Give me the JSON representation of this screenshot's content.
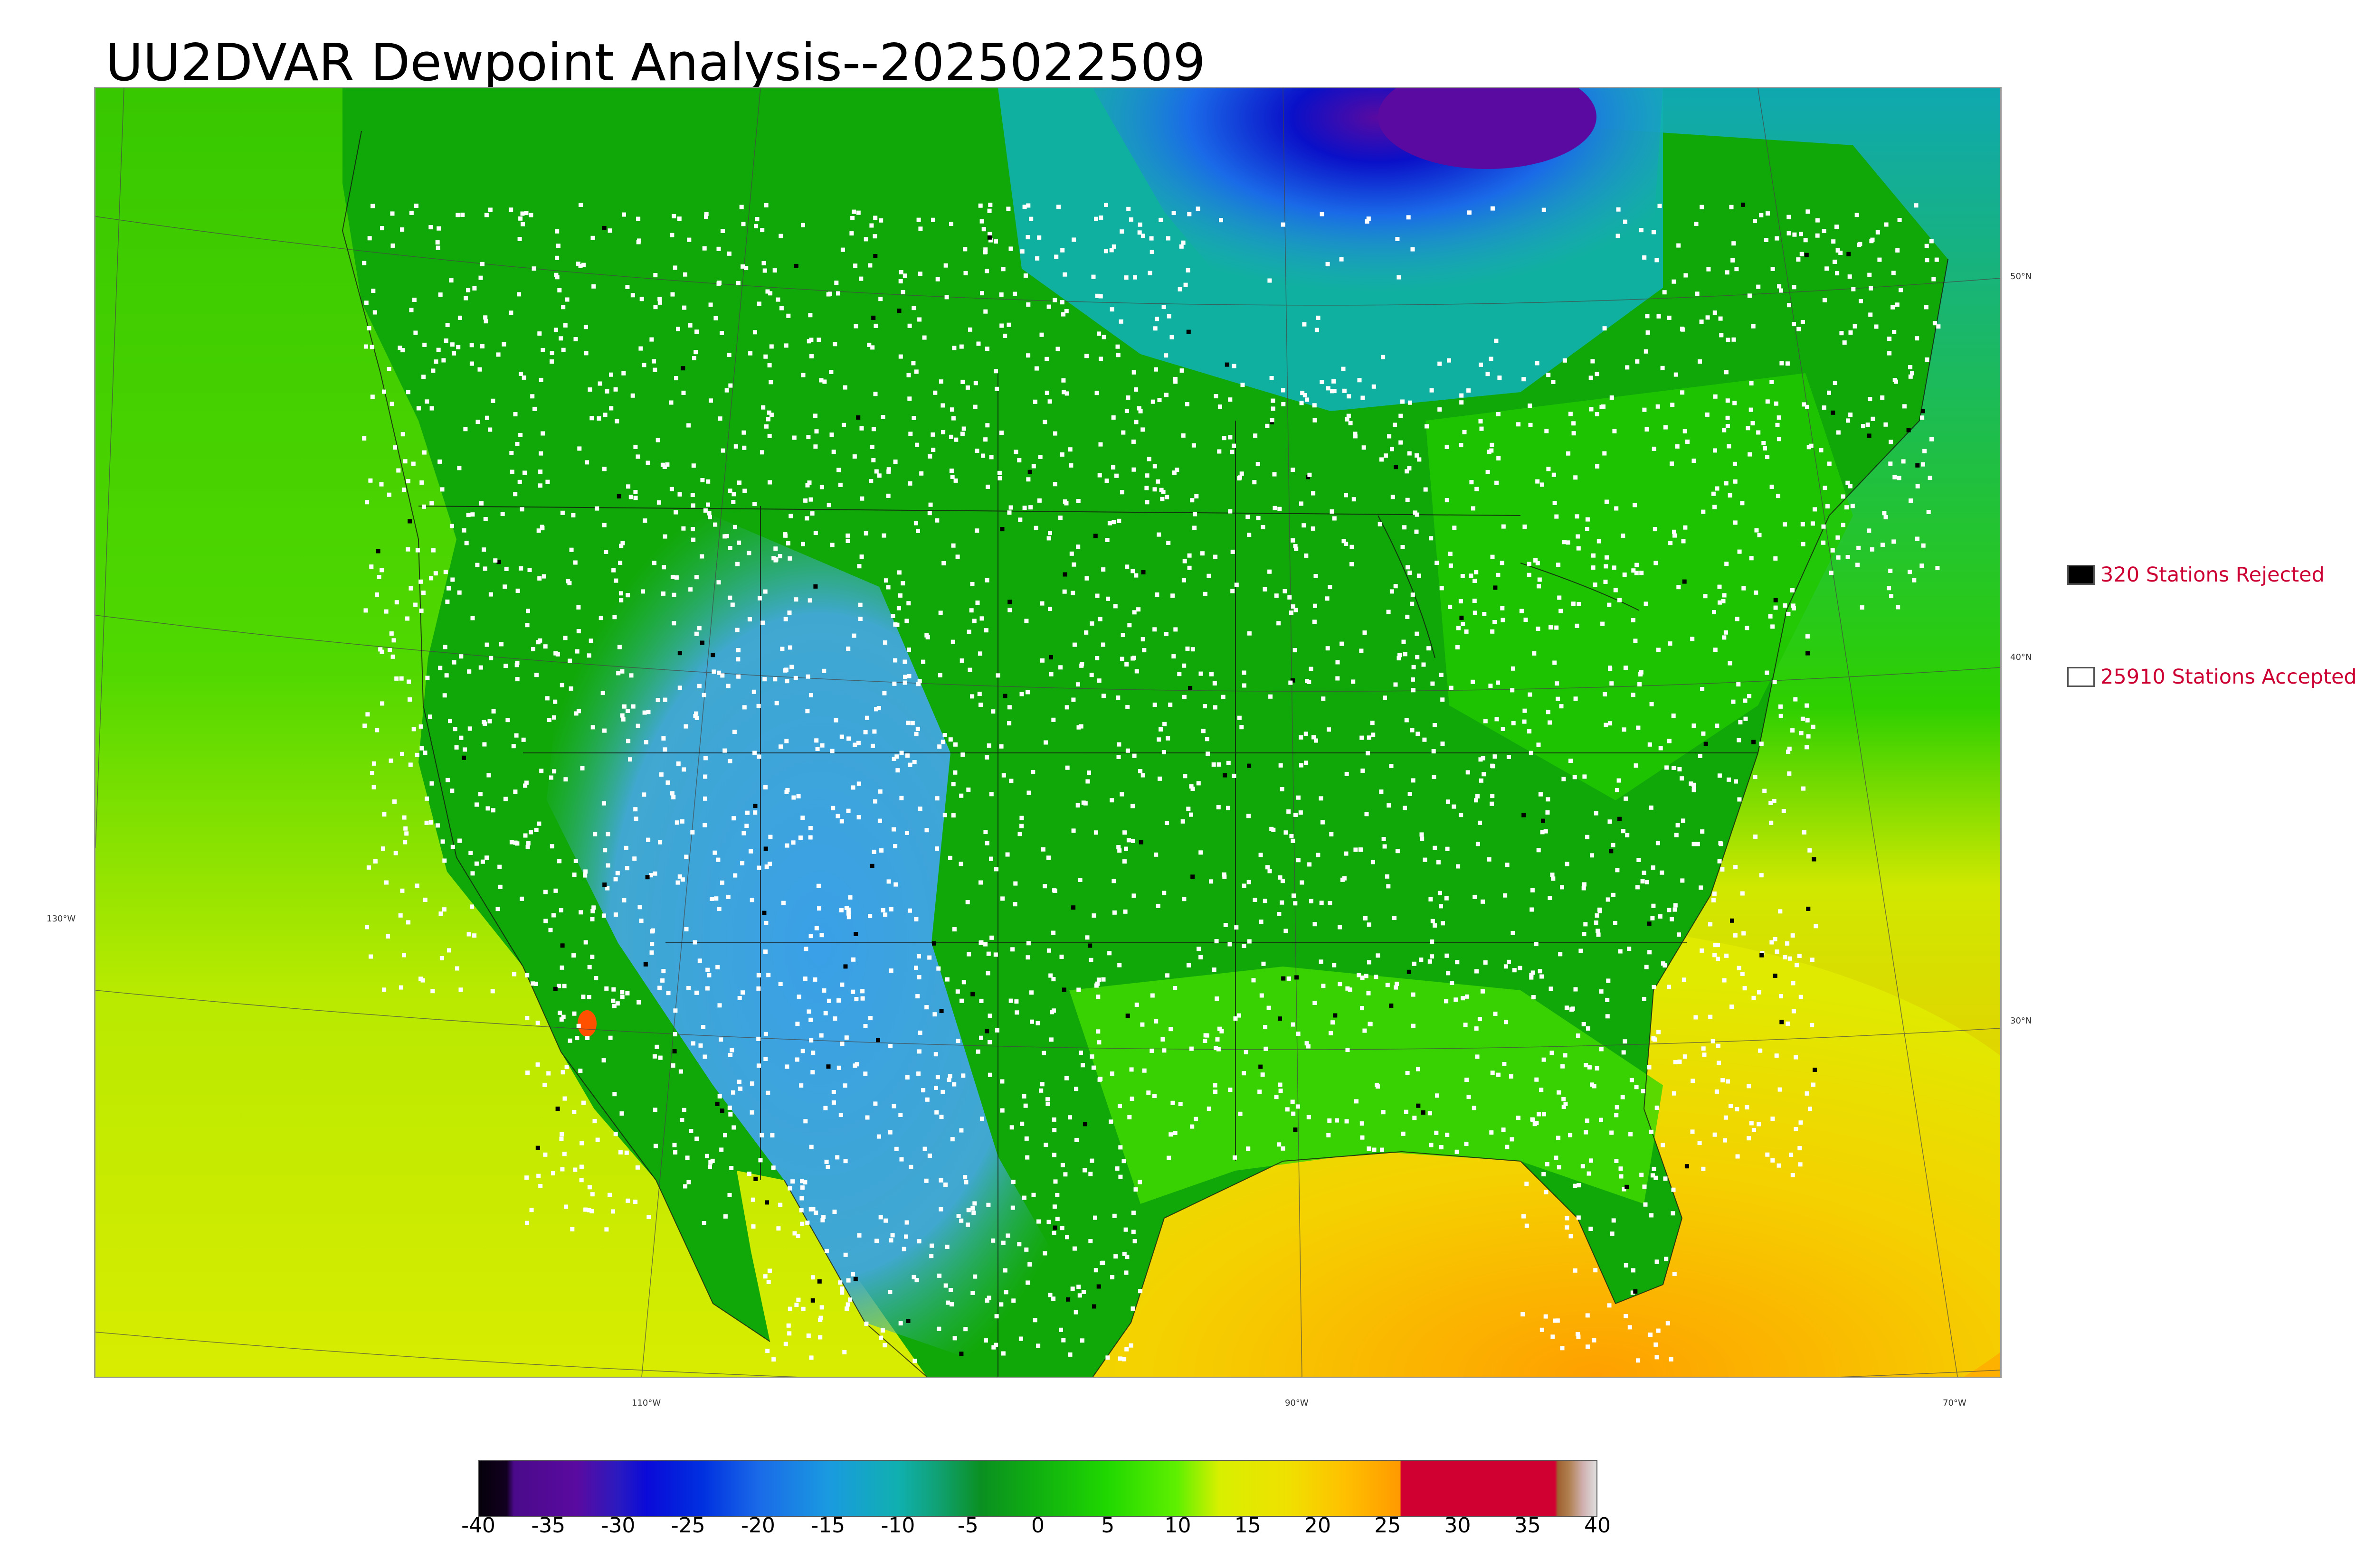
{
  "title": "UU2DVAR Dewpoint Analysis--2025022509",
  "map": {
    "lat_labels": [
      "50°N",
      "40°N",
      "30°N"
    ],
    "lon_labels": [
      "130°W",
      "110°W",
      "90°W",
      "70°W"
    ],
    "colors": {
      "pacific": "#44d100",
      "atlantic_north": "#22c050",
      "atlantic_south": "#f0d800",
      "gulf": "#e8e400",
      "west_dry": "#3aa6e0",
      "texas_dry": "#2f8fe0",
      "plains": "#0ea000",
      "east": "#1ed400",
      "southeast": "#6ee800",
      "canada_cold": "#0a18d8",
      "canada_coldest": "#5a0aa0",
      "canada_mid": "#2c8fd8",
      "station_accepted": "#ffffff",
      "station_rejected": "#000000"
    }
  },
  "legend": {
    "rejected": {
      "label": "320 Stations Rejected",
      "swatch_color": "#000000"
    },
    "accepted": {
      "label": "25910 Stations Accepted",
      "swatch_color": "#ffffff"
    }
  },
  "colorbar": {
    "ticks": [
      "-40",
      "-35",
      "-30",
      "-25",
      "-20",
      "-15",
      "-10",
      "-5",
      "0",
      "5",
      "10",
      "15",
      "20",
      "25",
      "30",
      "35",
      "40"
    ],
    "min": -40,
    "max": 40,
    "stops": [
      [
        -40,
        "#05000a"
      ],
      [
        -38,
        "#120020"
      ],
      [
        -37.5,
        "#4a0a8a"
      ],
      [
        -33,
        "#5a0aa0"
      ],
      [
        -30,
        "#2a1ac0"
      ],
      [
        -28,
        "#0a0ad8"
      ],
      [
        -24,
        "#0030e0"
      ],
      [
        -20,
        "#1a6ae8"
      ],
      [
        -15,
        "#1a9ae0"
      ],
      [
        -10,
        "#10b0b0"
      ],
      [
        -7,
        "#10a070"
      ],
      [
        -4,
        "#0a9020"
      ],
      [
        0,
        "#10b010"
      ],
      [
        5,
        "#20d800"
      ],
      [
        10,
        "#60f000"
      ],
      [
        13,
        "#d8f000"
      ],
      [
        18,
        "#f0e000"
      ],
      [
        22,
        "#ffc000"
      ],
      [
        25.9,
        "#ff9a00"
      ],
      [
        26,
        "#d00030"
      ],
      [
        37,
        "#d00030"
      ],
      [
        37.2,
        "#a06030"
      ],
      [
        38,
        "#b08050"
      ],
      [
        39,
        "#d0b0b0"
      ],
      [
        40,
        "#e0e0e0"
      ]
    ]
  }
}
